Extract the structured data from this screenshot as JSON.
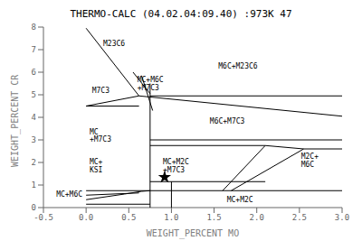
{
  "chart_data": {
    "type": "line",
    "title": "THERMO-CALC (04.02.04:09.40) :973K 47",
    "x_label": "WEIGHT_PERCENT MO",
    "y_label": "WEIGHT_PERCENT CR",
    "xlim": [
      -0.5,
      3.0
    ],
    "ylim": [
      0,
      8
    ],
    "xticks": [
      -0.5,
      {
        "value": 0,
        "label": "0.0"
      },
      0.5,
      {
        "value": 1.0,
        "label": "1.0"
      },
      1.5,
      {
        "value": 2.0,
        "label": "2.0"
      },
      2.5,
      {
        "value": 3.0,
        "label": "3.0"
      }
    ],
    "yticks": [
      0,
      1,
      2,
      3,
      4,
      5,
      6,
      7,
      8
    ],
    "grid": false,
    "color": "#000000",
    "series": [
      {
        "type": "line",
        "x": [
          0.0,
          0.62
        ],
        "y": [
          7.95,
          4.95
        ]
      },
      {
        "type": "line",
        "x": [
          0.62,
          3.0
        ],
        "y": [
          4.95,
          4.05
        ]
      },
      {
        "type": "line",
        "x": [
          0.0,
          0.62
        ],
        "y": [
          4.5,
          4.95
        ]
      },
      {
        "type": "line",
        "x": [
          0.0,
          0.62
        ],
        "y": [
          4.5,
          4.5
        ]
      },
      {
        "type": "line",
        "x": [
          0.55,
          0.75
        ],
        "y": [
          6.0,
          5.05
        ]
      },
      {
        "type": "line",
        "x": [
          0.65,
          0.78
        ],
        "y": [
          5.85,
          4.3
        ]
      },
      {
        "type": "line",
        "x": [
          0.75,
          3.0
        ],
        "y": [
          4.95,
          4.95
        ]
      },
      {
        "type": "line",
        "x": [
          0.75,
          3.0
        ],
        "y": [
          3.0,
          3.0
        ]
      },
      {
        "type": "line",
        "x": [
          0.75,
          0.75
        ],
        "y": [
          5.5,
          0.0
        ]
      },
      {
        "type": "line",
        "x": [
          0.75,
          2.1
        ],
        "y": [
          2.75,
          2.75
        ]
      },
      {
        "type": "line",
        "x": [
          0.0,
          3.0
        ],
        "y": [
          0.75,
          0.75
        ]
      },
      {
        "type": "line",
        "x": [
          1.0,
          1.0
        ],
        "y": [
          0.0,
          1.15
        ]
      },
      {
        "type": "line",
        "x": [
          1.6,
          2.1
        ],
        "y": [
          0.75,
          2.75
        ]
      },
      {
        "type": "line",
        "x": [
          2.1,
          2.55
        ],
        "y": [
          2.75,
          2.6
        ]
      },
      {
        "type": "line",
        "x": [
          2.55,
          3.0
        ],
        "y": [
          2.6,
          2.6
        ]
      },
      {
        "type": "line",
        "x": [
          1.7,
          2.55
        ],
        "y": [
          0.75,
          2.6
        ]
      },
      {
        "type": "line",
        "x": [
          0.75,
          2.1
        ],
        "y": [
          1.15,
          1.15
        ]
      },
      {
        "type": "line",
        "x": [
          0.0,
          0.45
        ],
        "y": [
          0.35,
          0.6
        ]
      },
      {
        "type": "line",
        "x": [
          0.45,
          0.65
        ],
        "y": [
          0.6,
          0.72
        ]
      },
      {
        "type": "line",
        "x": [
          0.65,
          0.75
        ],
        "y": [
          0.72,
          0.75
        ]
      },
      {
        "type": "line",
        "x": [
          0.0,
          0.62
        ],
        "y": [
          0.55,
          0.65
        ]
      },
      {
        "type": "line",
        "x": [
          0.0,
          0.75
        ],
        "y": [
          0.15,
          0.15
        ]
      },
      {
        "type": "scatter",
        "marker": "star",
        "x": [
          0.92
        ],
        "y": [
          1.35
        ]
      }
    ],
    "annotations": [
      {
        "text": "M23C6",
        "x": 0.2,
        "y": 7.3
      },
      {
        "text": "M7C3",
        "x": 0.07,
        "y": 5.2
      },
      {
        "text": "MC\n+M7C3",
        "x": 0.04,
        "y": 3.2
      },
      {
        "text": "MC+\nKSI",
        "x": 0.04,
        "y": 1.85
      },
      {
        "text": "MC+M6C\n+M7C3",
        "x": 0.6,
        "y": 5.5
      },
      {
        "text": "M6C+M23C6",
        "x": 1.55,
        "y": 6.3
      },
      {
        "text": "M6C+M7C3",
        "x": 1.45,
        "y": 3.85
      },
      {
        "text": "MC+M2C\n+M7C3",
        "x": 0.9,
        "y": 1.85
      },
      {
        "text": "M2C+\nM6C",
        "x": 2.52,
        "y": 2.1
      },
      {
        "text": "MC+M2C",
        "x": 1.65,
        "y": 0.38
      },
      {
        "text": "MC+M6C",
        "x": -0.35,
        "y": 0.62
      }
    ]
  }
}
